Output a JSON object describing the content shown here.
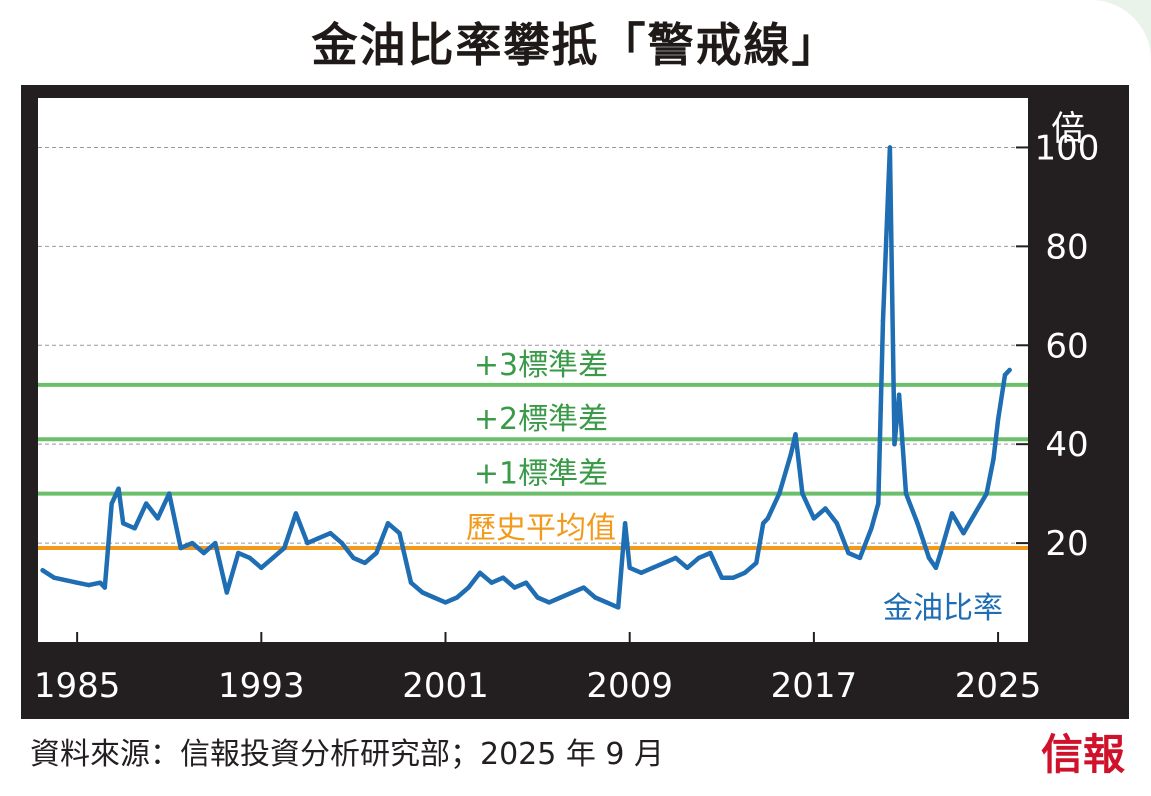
{
  "title": "金油比率攀抵「警戒線」",
  "source": "資料來源：信報投資分析研究部；2025 年 9 月",
  "logo": "信報",
  "colors": {
    "series": "#1f6db3",
    "std_lines": "#6cbf6a",
    "std_labels": "#3a9a48",
    "mean_line": "#f29a1c",
    "frame": "#231f20",
    "grid": "#9a9a9a"
  },
  "chart_data": {
    "type": "line",
    "title": "金油比率攀抵「警戒線」",
    "yunit": "倍",
    "ylim": [
      0,
      110
    ],
    "xlim": [
      1983.3,
      2026.3
    ],
    "yticks": [
      20,
      40,
      60,
      80,
      100
    ],
    "xticks": [
      1985,
      1993,
      2001,
      2009,
      2017,
      2025
    ],
    "grid": "horizontal dashed",
    "series": [
      {
        "name": "金油比率",
        "x": [
          1983.5,
          1984.0,
          1984.5,
          1985.0,
          1985.5,
          1986.0,
          1986.2,
          1986.5,
          1986.8,
          1987.0,
          1987.5,
          1988.0,
          1988.5,
          1989.0,
          1989.5,
          1990.0,
          1990.5,
          1991.0,
          1991.5,
          1992.0,
          1992.5,
          1993.0,
          1993.5,
          1994.0,
          1994.5,
          1995.0,
          1995.5,
          1996.0,
          1996.5,
          1997.0,
          1997.5,
          1998.0,
          1998.5,
          1999.0,
          1999.5,
          2000.0,
          2000.5,
          2001.0,
          2001.5,
          2002.0,
          2002.5,
          2003.0,
          2003.5,
          2004.0,
          2004.5,
          2005.0,
          2005.5,
          2006.0,
          2006.5,
          2007.0,
          2007.5,
          2008.0,
          2008.5,
          2008.8,
          2009.0,
          2009.5,
          2010.0,
          2010.5,
          2011.0,
          2011.5,
          2012.0,
          2012.5,
          2013.0,
          2013.5,
          2014.0,
          2014.5,
          2014.8,
          2015.0,
          2015.5,
          2016.0,
          2016.2,
          2016.5,
          2017.0,
          2017.5,
          2018.0,
          2018.5,
          2019.0,
          2019.5,
          2019.8,
          2020.0,
          2020.3,
          2020.5,
          2020.7,
          2021.0,
          2021.5,
          2022.0,
          2022.3,
          2022.5,
          2023.0,
          2023.5,
          2024.0,
          2024.5,
          2024.8,
          2025.0,
          2025.3,
          2025.5
        ],
        "y": [
          14.5,
          13.0,
          12.5,
          12.0,
          11.5,
          12.0,
          11.0,
          28.0,
          31.0,
          24.0,
          23.0,
          28.0,
          25.0,
          30.0,
          19.0,
          20.0,
          18.0,
          20.0,
          10.0,
          18.0,
          17.0,
          15.0,
          17.0,
          19.0,
          26.0,
          20.0,
          21.0,
          22.0,
          20.0,
          17.0,
          16.0,
          18.0,
          24.0,
          22.0,
          12.0,
          10.0,
          9.0,
          8.0,
          9.0,
          11.0,
          14.0,
          12.0,
          13.0,
          11.0,
          12.0,
          9.0,
          8.0,
          9.0,
          10.0,
          11.0,
          9.0,
          8.0,
          7.0,
          24.0,
          15.0,
          14.0,
          15.0,
          16.0,
          17.0,
          15.0,
          17.0,
          18.0,
          13.0,
          13.0,
          14.0,
          16.0,
          24.0,
          25.0,
          30.0,
          38.0,
          42.0,
          30.0,
          25.0,
          27.0,
          24.0,
          18.0,
          17.0,
          23.0,
          28.0,
          65.0,
          100.0,
          40.0,
          50.0,
          30.0,
          24.0,
          17.0,
          15.0,
          18.0,
          26.0,
          22.0,
          26.0,
          30.0,
          37.0,
          45.0,
          54.0,
          55.0
        ]
      }
    ],
    "reference_lines": [
      {
        "label": "+3標準差",
        "value": 52
      },
      {
        "label": "+2標準差",
        "value": 41
      },
      {
        "label": "+1標準差",
        "value": 30
      },
      {
        "label": "歷史平均值",
        "value": 19
      }
    ],
    "series_label": "金油比率"
  }
}
